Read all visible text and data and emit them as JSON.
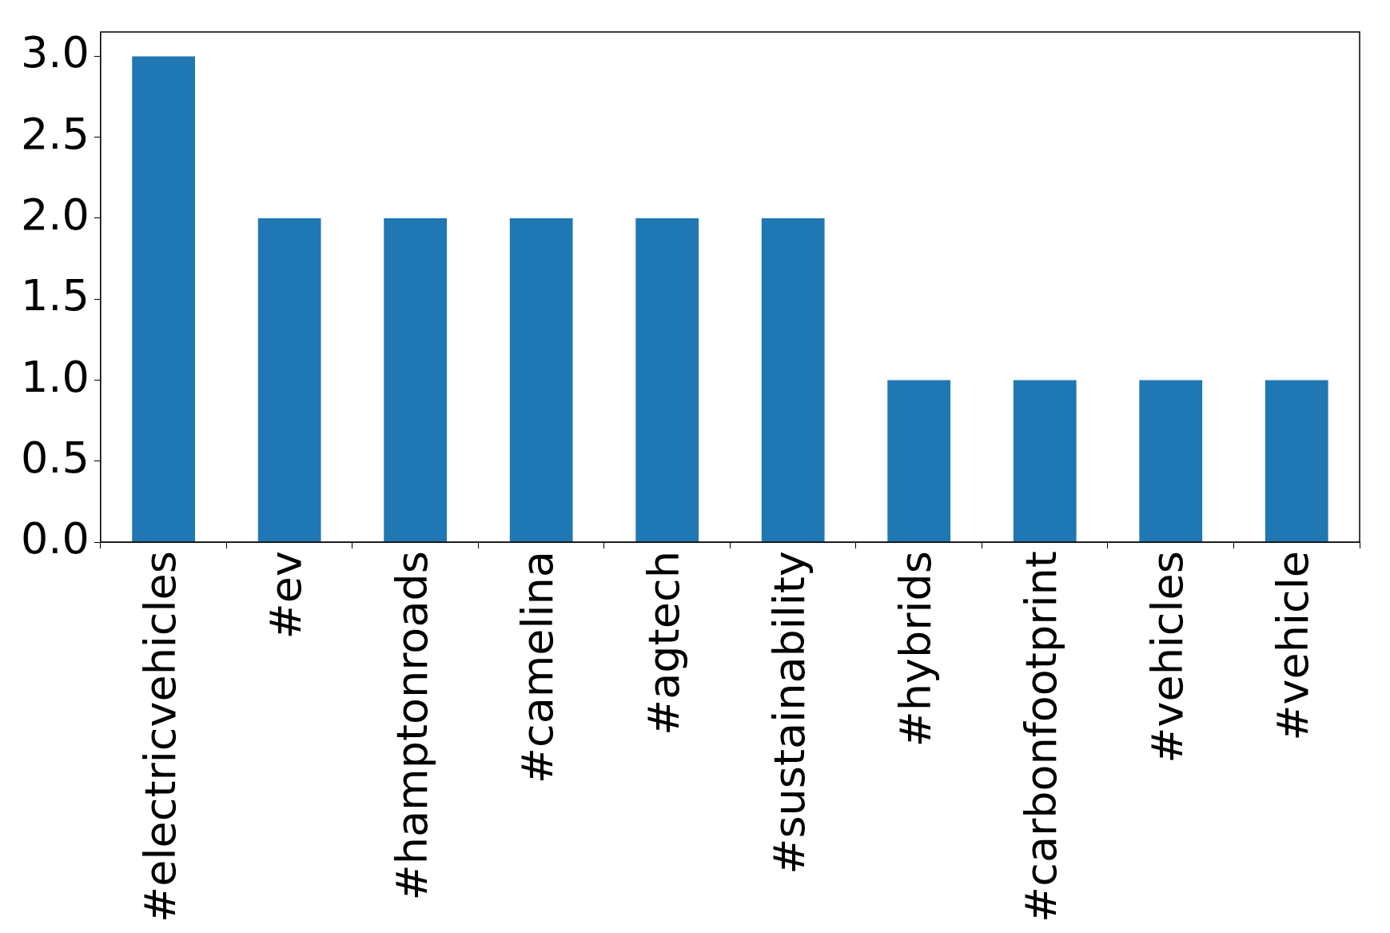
{
  "chart_data": {
    "type": "bar",
    "categories": [
      "#electricvehicles",
      "#ev",
      "#hamptonroads",
      "#camelina",
      "#agtech",
      "#sustainability",
      "#hybrids",
      "#carbonfootprint",
      "#vehicles",
      "#vehicle"
    ],
    "values": [
      3,
      2,
      2,
      2,
      2,
      2,
      1,
      1,
      1,
      1
    ],
    "color": "#1f77b4",
    "ylim": [
      0,
      3.15
    ],
    "yticks": [
      {
        "value": 0,
        "label": "0.0"
      },
      {
        "value": 0.5,
        "label": "0.5"
      },
      {
        "value": 1,
        "label": "1.0"
      },
      {
        "value": 1.5,
        "label": "1.5"
      },
      {
        "value": 2,
        "label": "2.0"
      },
      {
        "value": 2.5,
        "label": "2.5"
      },
      {
        "value": 3,
        "label": "3.0"
      }
    ],
    "grid": false,
    "legend": false
  }
}
